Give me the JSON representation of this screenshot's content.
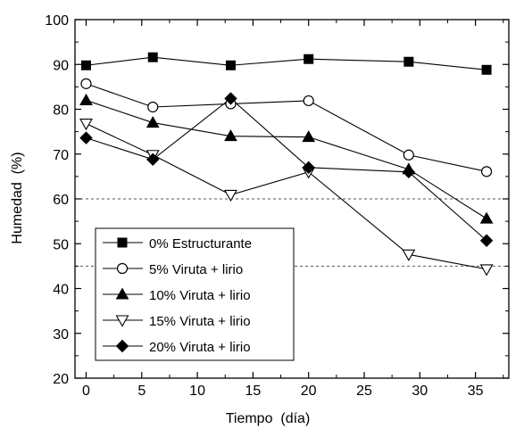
{
  "chart_data": {
    "type": "line",
    "xlabel": "Tiempo  (día)",
    "ylabel": "Humedad  (%)",
    "xlim": [
      -1,
      38
    ],
    "ylim": [
      20,
      100
    ],
    "x_ticks": [
      0,
      5,
      10,
      15,
      20,
      25,
      30,
      35
    ],
    "y_ticks": [
      20,
      30,
      40,
      50,
      60,
      70,
      80,
      90,
      100
    ],
    "reference_lines": [
      60,
      45
    ],
    "legend_position": "bottom-left",
    "grid": false,
    "series": [
      {
        "name": "0% Estructurante",
        "marker": "square-filled",
        "x": [
          0,
          6,
          13,
          20,
          29,
          36
        ],
        "y": [
          89.8,
          91.6,
          89.8,
          91.2,
          90.6,
          88.8
        ]
      },
      {
        "name": "5% Viruta + lirio",
        "marker": "circle-open",
        "x": [
          0,
          6,
          13,
          20,
          29,
          36
        ],
        "y": [
          85.7,
          80.5,
          81.2,
          81.9,
          69.8,
          66.1
        ]
      },
      {
        "name": "10% Viruta + lirio",
        "marker": "triangle-up-filled",
        "x": [
          0,
          6,
          13,
          20,
          29,
          36
        ],
        "y": [
          82.0,
          77.0,
          74.0,
          73.8,
          66.6,
          55.6
        ]
      },
      {
        "name": "15% Viruta + lirio",
        "marker": "triangle-down-open",
        "x": [
          0,
          6,
          13,
          20,
          29,
          36
        ],
        "y": [
          76.8,
          69.8,
          60.9,
          66.0,
          47.6,
          44.3
        ]
      },
      {
        "name": "20% Viruta + lirio",
        "marker": "diamond-filled",
        "x": [
          0,
          6,
          13,
          20,
          29,
          36
        ],
        "y": [
          73.6,
          68.8,
          82.4,
          67.0,
          66.0,
          50.7
        ]
      }
    ]
  }
}
